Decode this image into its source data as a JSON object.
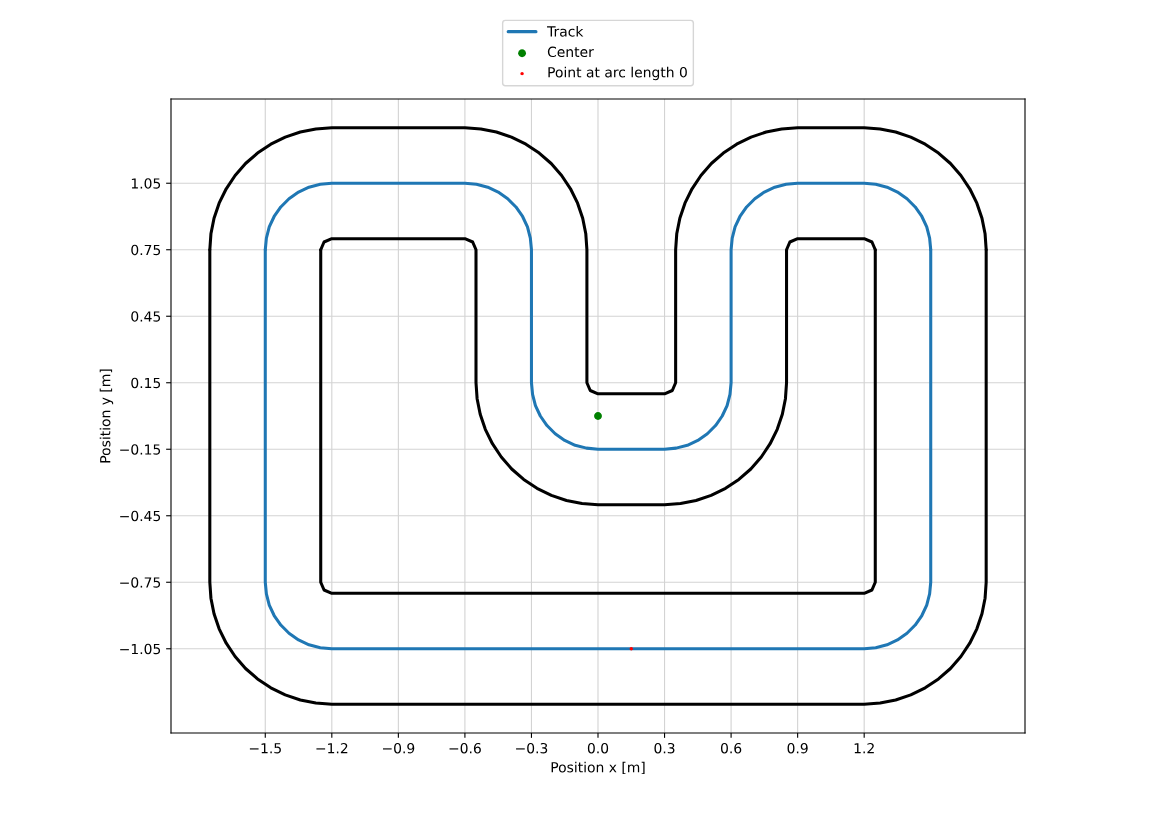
{
  "chart_data": {
    "type": "line",
    "xlabel": "Position x [m]",
    "ylabel": "Position y [m]",
    "xlim": [
      -1.925,
      1.925
    ],
    "ylim": [
      -1.43,
      1.43
    ],
    "xticks": [
      {
        "value": -1.5,
        "label": "−1.5"
      },
      {
        "value": -1.2,
        "label": "−1.2"
      },
      {
        "value": -0.9,
        "label": "−0.9"
      },
      {
        "value": -0.6,
        "label": "−0.6"
      },
      {
        "value": -0.3,
        "label": "−0.3"
      },
      {
        "value": 0,
        "label": "0.0"
      },
      0.3,
      0.6,
      0.9,
      1.2
    ],
    "yticks": [
      {
        "value": -1.05,
        "label": "−1.05"
      },
      {
        "value": -0.75,
        "label": "−0.75"
      },
      {
        "value": -0.45,
        "label": "−0.45"
      },
      {
        "value": -0.15,
        "label": "−0.15"
      },
      0.15,
      0.45,
      0.75,
      1.05
    ],
    "grid": true,
    "legend": "top",
    "series": [
      {
        "name": "Track",
        "color": "#1f77b4",
        "x": [
          -1.5,
          -1.495,
          -1.482,
          -1.46,
          -1.43,
          -1.393,
          -1.35,
          -1.303,
          -1.252,
          -1.2,
          -0.6,
          -0.548,
          -0.497,
          -0.45,
          -0.407,
          -0.37,
          -0.34,
          -0.318,
          -0.305,
          -0.3,
          -0.3,
          -0.295,
          -0.282,
          -0.26,
          -0.23,
          -0.193,
          -0.15,
          -0.103,
          -0.052,
          0,
          0.3,
          0.352,
          0.403,
          0.45,
          0.493,
          0.53,
          0.56,
          0.582,
          0.595,
          0.6,
          0.6,
          0.605,
          0.618,
          0.64,
          0.67,
          0.707,
          0.75,
          0.797,
          0.848,
          0.9,
          1.2,
          1.252,
          1.303,
          1.35,
          1.393,
          1.43,
          1.46,
          1.482,
          1.495,
          1.5
        ],
        "values": [
          0.75,
          0.802,
          0.853,
          0.9,
          0.943,
          0.98,
          1.01,
          1.032,
          1.045,
          1.05,
          1.05,
          1.045,
          1.032,
          1.01,
          0.98,
          0.943,
          0.9,
          0.853,
          0.802,
          0.75,
          0.15,
          0.098,
          0.047,
          0,
          -0.043,
          -0.08,
          -0.11,
          -0.132,
          -0.145,
          -0.15,
          -0.15,
          -0.145,
          -0.132,
          -0.11,
          -0.08,
          -0.043,
          0,
          0.047,
          0.098,
          0.15,
          0.75,
          0.802,
          0.853,
          0.9,
          0.943,
          0.98,
          1.01,
          1.032,
          1.045,
          1.05,
          1.05,
          1.045,
          1.032,
          1.01,
          0.98,
          0.943,
          0.9,
          0.853,
          0.802,
          0.75
        ]
      },
      {
        "color": "#1f77b4",
        "x": [
          -1.5,
          -1.5,
          -1.495,
          -1.482,
          -1.46,
          -1.43,
          -1.393,
          -1.35,
          -1.303,
          -1.252,
          -1.2,
          1.2,
          1.252,
          1.303,
          1.35,
          1.393,
          1.43,
          1.46,
          1.482,
          1.495,
          1.5,
          1.5
        ],
        "values": [
          0.75,
          -0.75,
          -0.802,
          -0.853,
          -0.9,
          -0.943,
          -0.98,
          -1.01,
          -1.032,
          -1.045,
          -1.05,
          -1.05,
          -1.045,
          -1.032,
          -1.01,
          -0.98,
          -0.943,
          -0.9,
          -0.853,
          -0.802,
          -0.75,
          0.75
        ]
      },
      {
        "color": "#000000",
        "x": [
          -1.75,
          -1.745,
          -1.731,
          -1.708,
          -1.676,
          -1.636,
          -1.589,
          -1.535,
          -1.475,
          -1.41,
          -1.342,
          -1.272,
          -1.2,
          -0.6,
          -0.528,
          -0.458,
          -0.39,
          -0.325,
          -0.265,
          -0.211,
          -0.164,
          -0.124,
          -0.092,
          -0.069,
          -0.055,
          -0.05,
          -0.05,
          -0.035,
          0,
          0.3,
          0.335,
          0.35,
          0.35,
          0.355,
          0.369,
          0.392,
          0.424,
          0.464,
          0.511,
          0.565,
          0.625,
          0.69,
          0.758,
          0.828,
          0.9,
          1.2,
          1.272,
          1.342,
          1.41,
          1.475,
          1.535,
          1.589,
          1.636,
          1.676,
          1.708,
          1.731,
          1.745,
          1.75
        ],
        "values": [
          0.75,
          0.822,
          0.892,
          0.96,
          1.025,
          1.085,
          1.139,
          1.186,
          1.226,
          1.258,
          1.281,
          1.295,
          1.3,
          1.3,
          1.295,
          1.281,
          1.258,
          1.226,
          1.186,
          1.139,
          1.085,
          1.025,
          0.96,
          0.892,
          0.822,
          0.75,
          0.15,
          0.115,
          0.1,
          0.1,
          0.115,
          0.15,
          0.75,
          0.822,
          0.892,
          0.96,
          1.025,
          1.085,
          1.139,
          1.186,
          1.226,
          1.258,
          1.281,
          1.295,
          1.3,
          1.3,
          1.295,
          1.281,
          1.258,
          1.226,
          1.186,
          1.139,
          1.085,
          1.025,
          0.96,
          0.892,
          0.822,
          0.75
        ]
      },
      {
        "color": "#000000",
        "x": [
          -1.75,
          -1.75,
          -1.745,
          -1.731,
          -1.708,
          -1.676,
          -1.636,
          -1.589,
          -1.535,
          -1.475,
          -1.41,
          -1.342,
          -1.272,
          -1.2,
          1.2,
          1.272,
          1.342,
          1.41,
          1.475,
          1.535,
          1.589,
          1.636,
          1.676,
          1.708,
          1.731,
          1.745,
          1.75,
          1.75
        ],
        "values": [
          0.75,
          -0.75,
          -0.822,
          -0.892,
          -0.96,
          -1.025,
          -1.085,
          -1.139,
          -1.186,
          -1.226,
          -1.258,
          -1.281,
          -1.295,
          -1.3,
          -1.3,
          -1.295,
          -1.281,
          -1.258,
          -1.226,
          -1.186,
          -1.139,
          -1.085,
          -1.025,
          -0.96,
          -0.892,
          -0.822,
          -0.75,
          0.75
        ]
      },
      {
        "color": "#000000",
        "x": [
          -1.25,
          -1.235,
          -1.2,
          -0.6,
          -0.565,
          -0.55,
          -0.55,
          -0.545,
          -0.531,
          -0.508,
          -0.476,
          -0.436,
          -0.389,
          -0.335,
          -0.275,
          -0.21,
          -0.142,
          -0.072,
          0,
          0.3,
          0.372,
          0.442,
          0.51,
          0.575,
          0.635,
          0.689,
          0.736,
          0.776,
          0.808,
          0.831,
          0.845,
          0.85,
          0.85,
          0.865,
          0.9,
          1.2,
          1.235,
          1.25
        ],
        "values": [
          0.75,
          0.785,
          0.8,
          0.8,
          0.785,
          0.75,
          0.15,
          0.078,
          0.008,
          -0.06,
          -0.125,
          -0.185,
          -0.239,
          -0.286,
          -0.326,
          -0.358,
          -0.381,
          -0.395,
          -0.4,
          -0.4,
          -0.395,
          -0.381,
          -0.358,
          -0.326,
          -0.286,
          -0.239,
          -0.185,
          -0.125,
          -0.06,
          0.008,
          0.078,
          0.15,
          0.75,
          0.785,
          0.8,
          0.8,
          0.785,
          0.75
        ]
      },
      {
        "color": "#000000",
        "x": [
          -1.25,
          -1.25,
          -1.235,
          -1.2,
          1.2,
          1.235,
          1.25,
          1.25
        ],
        "values": [
          0.75,
          -0.75,
          -0.785,
          -0.8,
          -0.8,
          -0.785,
          -0.75,
          0.75
        ]
      },
      {
        "name": "Center",
        "type": "scatter",
        "color": "#008000",
        "marker": "circle",
        "x": [
          0
        ],
        "values": [
          0
        ]
      },
      {
        "name": "Point at arc length 0",
        "type": "scatter",
        "color": "#ff0000",
        "marker": "circle",
        "x": [
          0.15
        ],
        "values": [
          -1.05
        ]
      }
    ]
  }
}
